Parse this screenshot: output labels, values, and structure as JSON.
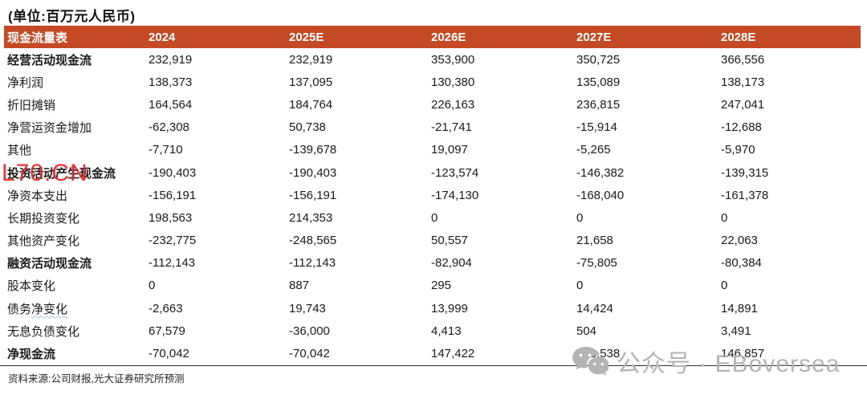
{
  "unit_title": "(单位:百万元人民币)",
  "table": {
    "header": {
      "label": "现金流量表",
      "columns": [
        "2024",
        "2025E",
        "2026E",
        "2027E",
        "2028E"
      ]
    },
    "rows": [
      {
        "label": "经营活动现金流",
        "bold": true,
        "values": [
          "232,919",
          "232,919",
          "353,900",
          "350,725",
          "366,556"
        ]
      },
      {
        "label": "净利润",
        "bold": false,
        "values": [
          "138,373",
          "137,095",
          "130,380",
          "135,089",
          "138,173"
        ]
      },
      {
        "label": "折旧摊销",
        "bold": false,
        "values": [
          "164,564",
          "184,764",
          "226,163",
          "236,815",
          "247,041"
        ]
      },
      {
        "label": "净营运资金增加",
        "bold": false,
        "values": [
          "-62,308",
          "50,738",
          "-21,741",
          "-15,914",
          "-12,688"
        ]
      },
      {
        "label": "其他",
        "bold": false,
        "values": [
          "-7,710",
          "-139,678",
          "19,097",
          "-5,265",
          "-5,970"
        ]
      },
      {
        "label": "投资活动产生现金流",
        "bold": true,
        "values": [
          "-190,403",
          "-190,403",
          "-123,574",
          "-146,382",
          "-139,315"
        ]
      },
      {
        "label": "净资本支出",
        "bold": false,
        "values": [
          "-156,191",
          "-156,191",
          "-174,130",
          "-168,040",
          "-161,378"
        ]
      },
      {
        "label": "长期投资变化",
        "bold": false,
        "values": [
          "198,563",
          "214,353",
          "0",
          "0",
          "0"
        ]
      },
      {
        "label": "其他资产变化",
        "bold": false,
        "values": [
          "-232,775",
          "-248,565",
          "50,557",
          "21,658",
          "22,063"
        ]
      },
      {
        "label": "融资活动现金流",
        "bold": true,
        "values": [
          "-112,143",
          "-112,143",
          "-82,904",
          "-75,805",
          "-80,384"
        ]
      },
      {
        "label": "股本变化",
        "bold": false,
        "values": [
          "0",
          "887",
          "295",
          "0",
          "0"
        ]
      },
      {
        "label": "债务净变化",
        "bold": false,
        "label_parts": {
          "plain": "债务",
          "wavy": "净变化"
        },
        "values": [
          "-2,663",
          "19,743",
          "13,999",
          "14,424",
          "14,891"
        ]
      },
      {
        "label": "无息负债变化",
        "bold": false,
        "values": [
          "67,579",
          "-36,000",
          "4,413",
          "504",
          "3,491"
        ]
      },
      {
        "label": "净现金流",
        "bold": true,
        "values": [
          "-70,042",
          "-70,042",
          "147,422",
          "128,538",
          "146,857"
        ]
      }
    ]
  },
  "footer": {
    "source": "资料来源:公司财报,光大证券研究所预测"
  },
  "watermarks": {
    "red_text": "L70.CN",
    "wechat_text": "公众号 · EBoversea",
    "wechat_icon": "wechat-icon"
  },
  "colors": {
    "header_bg": "#C34A24",
    "header_text": "#FFFFFF",
    "body_text": "#1A1A1A",
    "watermark_red": "#E8262A",
    "watermark_gray": "#B4B4B4",
    "squiggle_blue": "#9CC3E5",
    "rule_dark": "#2E2E2E"
  }
}
